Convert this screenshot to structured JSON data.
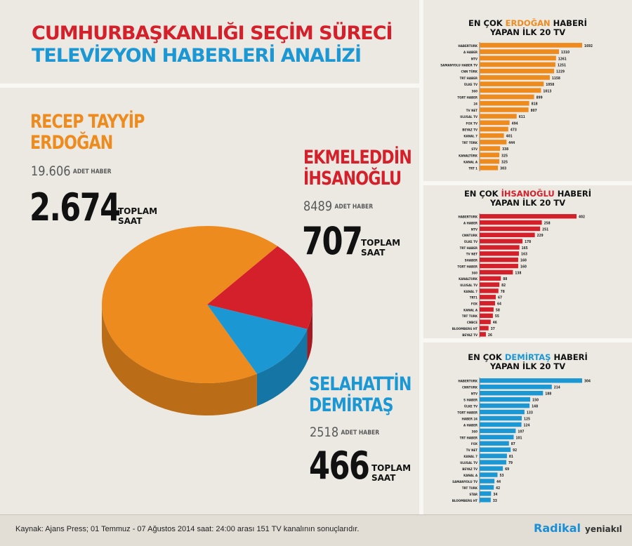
{
  "title": {
    "line1": "CUMHURBAŞKANLIĞI SEÇİM SÜRECİ",
    "line2": "TELEVİZYON HABERLERİ ANALİZİ"
  },
  "colors": {
    "erdogan": "#ee8b1e",
    "ihsanoglu": "#d4202a",
    "demirtas": "#1b97d4"
  },
  "candidates": {
    "erdogan": {
      "name_l1": "RECEP TAYYİP",
      "name_l2": "ERDOĞAN",
      "news_count": "19.606",
      "news_unit": "ADET HABER",
      "hours": "2.674",
      "hours_label": "TOPLAM\nSAAT"
    },
    "ihsanoglu": {
      "name_l1": "EKMELEDDİN",
      "name_l2": "İHSANOĞLU",
      "news_count": "8489",
      "news_unit": "ADET HABER",
      "hours": "707",
      "hours_label": "TOPLAM\nSAAT"
    },
    "demirtas": {
      "name_l1": "SELAHATTİN",
      "name_l2": "DEMİRTAŞ",
      "news_count": "2518",
      "news_unit": "ADET HABER",
      "hours": "466",
      "hours_label": "TOPLAM\nSAAT"
    }
  },
  "rankings": {
    "erdogan": {
      "title_pre": "EN ÇOK ",
      "title_name": "ERDOĞAN",
      "title_post": " HABERİ",
      "title_l2": "YAPAN İLK 20 TV"
    },
    "ihsanoglu": {
      "title_pre": "EN ÇOK ",
      "title_name": "İHSANOĞLU",
      "title_post": " HABERİ",
      "title_l2": "YAPAN İLK 20 TV"
    },
    "demirtas": {
      "title_pre": "EN ÇOK ",
      "title_name": "DEMİRTAŞ",
      "title_post": " HABERİ",
      "title_l2": "YAPAN İLK 20 TV"
    }
  },
  "chart_data": [
    {
      "type": "pie",
      "categories": [
        "RECEP TAYYİP ERDOĞAN",
        "EKMELEDDİN İHSANOĞLU",
        "SELAHATTİN DEMİRTAŞ"
      ],
      "values": [
        2674,
        707,
        466
      ]
    },
    {
      "type": "bar",
      "orientation": "horizontal",
      "color": "#ee8b1e",
      "categories": [
        "HABERTURK",
        "A HABER",
        "NTV",
        "SAMANYOLU HABER TV",
        "CNN TÜRK",
        "TRT HABER",
        "ÜLKE TV",
        "360",
        "TGRT HABER",
        "24",
        "TV NET",
        "ULUSAL TV",
        "FOX TV",
        "BEYAZ TV",
        "KANAL 7",
        "TRT TÜRK",
        "STV",
        "KANALTÜRK",
        "KANAL A",
        "TRT 1"
      ],
      "values": [
        1692,
        1310,
        1261,
        1251,
        1229,
        1158,
        1058,
        1013,
        899,
        818,
        807,
        611,
        494,
        473,
        401,
        444,
        338,
        325,
        325,
        303
      ]
    },
    {
      "type": "bar",
      "orientation": "horizontal",
      "color": "#d4202a",
      "categories": [
        "HABERTURK",
        "A HABER",
        "NTV",
        "CNNTURK",
        "ÜLKE TV",
        "TRT HABER",
        "TV NET",
        "SHABER",
        "TGRT HABER",
        "360",
        "KANALTURK",
        "ULUSAL TV",
        "KANAL 7",
        "TRT1",
        "FOX",
        "KANAL A",
        "TRT TURK",
        "CNBCE",
        "BLOOMBERG HT",
        "BEYAZ TV"
      ],
      "values": [
        402,
        258,
        251,
        229,
        178,
        165,
        163,
        160,
        160,
        138,
        88,
        82,
        78,
        67,
        64,
        58,
        55,
        46,
        37,
        26
      ]
    },
    {
      "type": "bar",
      "orientation": "horizontal",
      "color": "#1b97d4",
      "categories": [
        "HABERTURK",
        "CNNTURK",
        "NTV",
        "S HABER",
        "ÜLKE TV",
        "TGRT HABER",
        "HABER 24",
        "A HABER",
        "360",
        "TRT HABER",
        "FOX",
        "TV NET",
        "KANAL 7",
        "ULUSAL TV",
        "BEYAZ TV",
        "KANAL A",
        "SAMANYOLU TV",
        "TRT TURK",
        "STAR",
        "BLOOMBERG HT"
      ],
      "values": [
        304,
        214,
        188,
        150,
        148,
        133,
        125,
        124,
        107,
        101,
        87,
        92,
        81,
        79,
        69,
        53,
        44,
        42,
        34,
        33
      ]
    }
  ],
  "footer": {
    "source": "Kaynak: Ajans Press; 01 Temmuz - 07 Ağustos 2014 saat: 24:00 arası 151 TV kanalının sonuçlarıdır.",
    "logo_main": "Radikal",
    "logo_secondary": "yeniakıl"
  }
}
